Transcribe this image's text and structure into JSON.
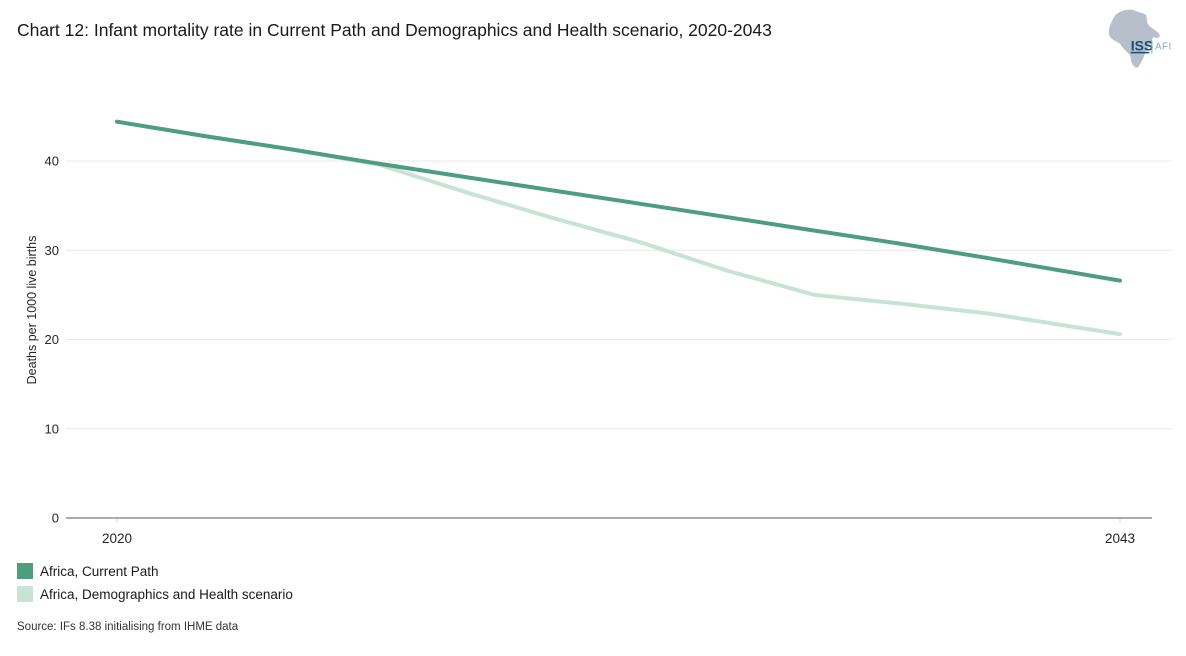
{
  "header": {
    "title": "Chart 12: Infant mortality rate in Current Path and Demographics and Health scenario, 2020-2043",
    "logo": {
      "org": "ISS",
      "unit": "AFI"
    }
  },
  "chart_data": {
    "type": "line",
    "title": "Chart 12: Infant mortality rate in Current Path and Demographics and Health scenario, 2020-2043",
    "xlabel": "",
    "ylabel": "Deaths per 1000 live births",
    "xlim": [
      2020,
      2043
    ],
    "ylim": [
      0,
      47
    ],
    "yticks": [
      0,
      10,
      20,
      30,
      40
    ],
    "xticks": [
      2020,
      2043
    ],
    "grid": true,
    "legend_position": "bottom-left",
    "series": [
      {
        "name": "Africa, Current Path",
        "color": "#4f9d80",
        "x": [
          2020,
          2022,
          2024,
          2026,
          2028,
          2030,
          2032,
          2034,
          2036,
          2038,
          2040,
          2043
        ],
        "y": [
          44.4,
          42.8,
          41.3,
          39.7,
          38.2,
          36.7,
          35.2,
          33.7,
          32.2,
          30.7,
          29.1,
          26.6
        ]
      },
      {
        "name": "Africa, Demographics and Health scenario",
        "color": "#c8e3d6",
        "x": [
          2020,
          2022,
          2024,
          2026,
          2028,
          2030,
          2032,
          2034,
          2036,
          2038,
          2040,
          2043
        ],
        "y": [
          44.4,
          42.8,
          41.3,
          39.6,
          36.5,
          33.6,
          30.9,
          27.7,
          25.0,
          24.0,
          22.9,
          20.6
        ]
      }
    ]
  },
  "source": "Source: IFs 8.38 initialising from IHME data",
  "colors": {
    "gridline": "#e8e8e8",
    "axis_line": "#595959",
    "tick_mark": "#d9d9d9",
    "tick_label": "#262626",
    "logo_africa": "#b7c0ca",
    "logo_org": "#1c4b73",
    "logo_unit": "#82a9c9"
  }
}
